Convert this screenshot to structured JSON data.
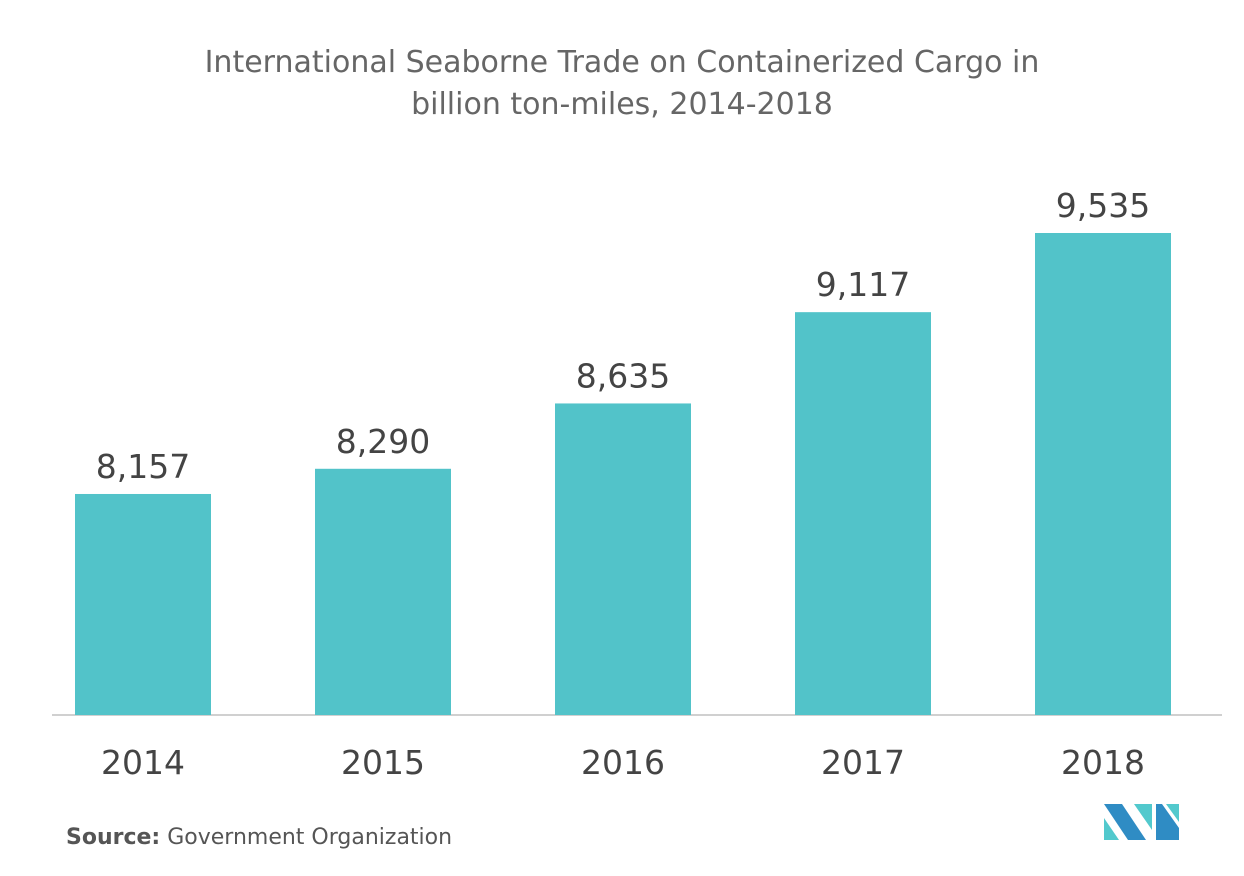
{
  "chart_data": {
    "type": "bar",
    "title_line1": "International Seaborne Trade on Containerized Cargo in",
    "title_line2": "billion ton-miles, 2014-2018",
    "categories": [
      "2014",
      "2015",
      "2016",
      "2017",
      "2018"
    ],
    "values": [
      8157,
      8290,
      8635,
      9117,
      9535
    ],
    "value_labels": [
      "8,157",
      "8,290",
      "8,635",
      "9,117",
      "9,535"
    ],
    "xlabel": "",
    "ylabel": "",
    "ylim": [
      6990,
      9535
    ],
    "grid": false,
    "bar_color": "#52c3c9"
  },
  "source": {
    "label": "Source:",
    "text": "Government Organization"
  },
  "logo": {
    "colors": [
      "#2f8cc4",
      "#52c9cd"
    ]
  }
}
